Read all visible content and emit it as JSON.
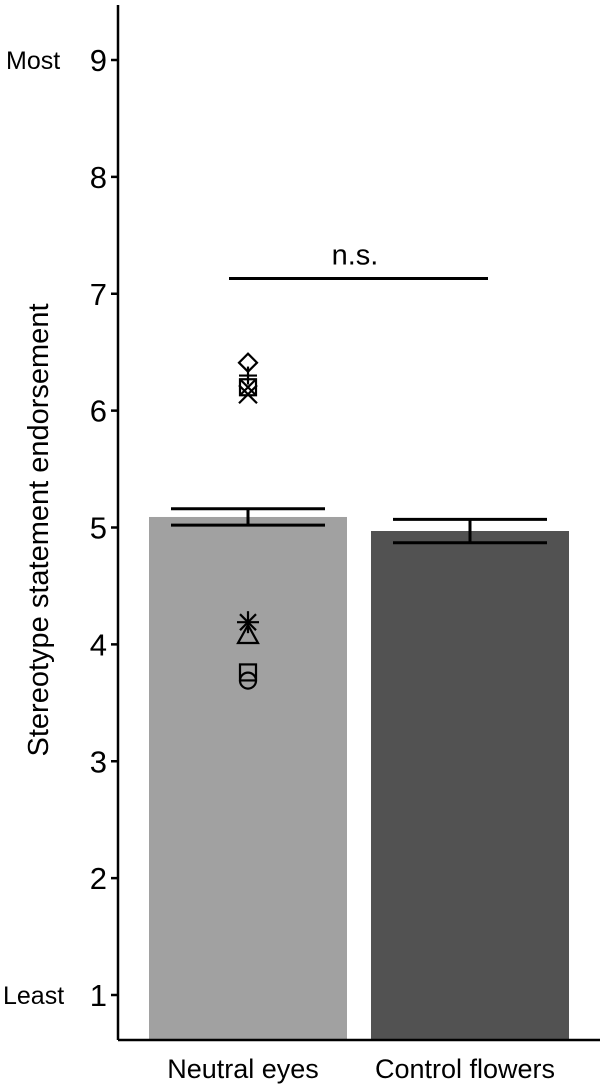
{
  "chart_data": {
    "type": "bar",
    "ylabel": "Stereotype statement endorsement",
    "xlabel": "",
    "ylim": [
      0.6,
      9.5
    ],
    "yticks": [
      1,
      2,
      3,
      4,
      5,
      6,
      7,
      8,
      9
    ],
    "y_anchor_labels": {
      "low": "Least",
      "high": "Most"
    },
    "categories": [
      "Neutral eyes",
      "Control flowers"
    ],
    "values": [
      5.09,
      4.97
    ],
    "error_low": [
      5.02,
      4.87
    ],
    "error_high": [
      5.16,
      5.07
    ],
    "bar_colors": [
      "#a1a1a1",
      "#525252"
    ],
    "markers": [
      {
        "category": "Neutral eyes",
        "shape": "diamond",
        "value": 6.41
      },
      {
        "category": "Neutral eyes",
        "shape": "plus",
        "value": 6.3
      },
      {
        "category": "Neutral eyes",
        "shape": "square-cross",
        "value": 6.2
      },
      {
        "category": "Neutral eyes",
        "shape": "x",
        "value": 6.14
      },
      {
        "category": "Neutral eyes",
        "shape": "asterisk",
        "value": 4.19
      },
      {
        "category": "Neutral eyes",
        "shape": "triangle",
        "value": 4.08
      },
      {
        "category": "Neutral eyes",
        "shape": "square",
        "value": 3.76
      },
      {
        "category": "Neutral eyes",
        "shape": "circle",
        "value": 3.69
      }
    ],
    "significance": {
      "label": "n.s.",
      "value": 7.13
    },
    "grid": false,
    "legend": "none"
  }
}
